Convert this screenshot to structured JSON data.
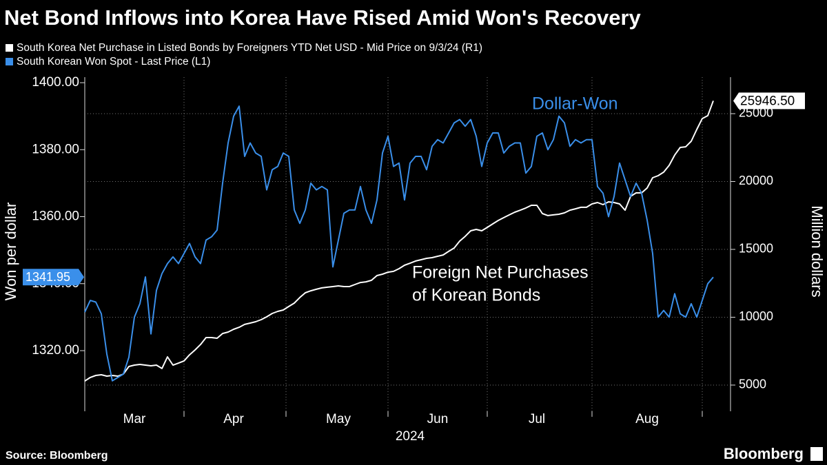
{
  "chart_data": {
    "type": "line",
    "title": "Net Bond Inflows into Korea Have Rised Amid Won's Recovery",
    "categories": [
      null,
      null,
      null,
      null,
      null,
      null,
      null,
      null,
      null,
      "Mar",
      null,
      null,
      null,
      null,
      null,
      null,
      null,
      null,
      null,
      null,
      null,
      null,
      null,
      null,
      null,
      null,
      null,
      "Apr",
      null,
      null,
      null,
      null,
      null,
      null,
      null,
      null,
      null,
      null,
      null,
      null,
      null,
      null,
      null,
      null,
      null,
      null,
      "May",
      null,
      null,
      null,
      null,
      null,
      null,
      null,
      null,
      null,
      null,
      null,
      null,
      null,
      null,
      null,
      null,
      null,
      "Jun",
      null,
      null,
      null,
      null,
      null,
      null,
      null,
      null,
      null,
      null,
      null,
      null,
      null,
      null,
      null,
      null,
      null,
      "Jul",
      null,
      null,
      null,
      null,
      null,
      null,
      null,
      null,
      null,
      null,
      null,
      null,
      null,
      null,
      null,
      null,
      null,
      null,
      null,
      "Aug",
      null,
      null,
      null,
      null,
      null,
      null,
      null,
      null,
      null,
      null,
      null,
      null
    ],
    "x_label": "2024",
    "series": [
      {
        "name": "South Korea Net Purchase in Listed Bonds by Foreigners YTD Net USD - Mid Price on 9/3/24 (R1)",
        "color": "#ffffff",
        "axis": "y2",
        "values": [
          5300,
          5560,
          5710,
          5760,
          5660,
          5710,
          5660,
          5810,
          6370,
          6470,
          6520,
          6470,
          6420,
          6470,
          6220,
          7080,
          6470,
          6620,
          6780,
          7230,
          7590,
          7990,
          8500,
          8500,
          8450,
          8800,
          8910,
          9110,
          9260,
          9470,
          9570,
          9670,
          9820,
          10030,
          10280,
          10430,
          10530,
          10790,
          11040,
          11450,
          11800,
          11950,
          12060,
          12160,
          12210,
          12260,
          12310,
          12260,
          12260,
          12410,
          12560,
          12610,
          12720,
          13070,
          13170,
          13320,
          13380,
          13580,
          13830,
          13980,
          14140,
          14240,
          14340,
          14390,
          14490,
          14590,
          14850,
          15100,
          15610,
          15960,
          16370,
          16470,
          16370,
          16620,
          16880,
          17130,
          17340,
          17540,
          17740,
          17890,
          18050,
          18250,
          18250,
          17640,
          17490,
          17540,
          17590,
          17690,
          17890,
          17990,
          18100,
          18100,
          18350,
          18450,
          18300,
          18500,
          18450,
          18350,
          17890,
          18910,
          19160,
          19160,
          19520,
          20280,
          20430,
          20690,
          21190,
          21950,
          22510,
          22560,
          22970,
          23830,
          24640,
          24850,
          25946.5
        ],
        "value_labels": [
          null,
          null,
          null,
          null,
          null,
          null,
          null,
          null,
          null,
          null,
          null,
          null,
          null,
          null,
          null,
          null,
          null,
          null,
          null,
          null,
          null,
          null,
          null,
          null,
          null,
          null,
          null,
          null,
          null,
          null,
          null,
          null,
          null,
          null,
          null,
          null,
          null,
          null,
          null,
          null,
          null,
          null,
          null,
          null,
          null,
          null,
          null,
          null,
          null,
          null,
          null,
          null,
          null,
          null,
          null,
          null,
          null,
          null,
          null,
          null,
          null,
          null,
          null,
          null,
          null,
          null,
          null,
          null,
          null,
          null,
          null,
          null,
          null,
          null,
          null,
          null,
          null,
          null,
          null,
          null,
          null,
          null,
          null,
          null,
          null,
          null,
          null,
          null,
          null,
          null,
          null,
          null,
          null,
          null,
          null,
          null,
          null,
          null,
          null,
          null,
          null,
          null,
          null,
          null,
          null,
          null,
          null,
          null,
          null,
          null,
          null,
          null,
          null,
          null,
          "25946.50"
        ]
      },
      {
        "name": "South Korean Won Spot - Last Price (L1)",
        "color": "#3a8fea",
        "axis": "y",
        "values": [
          1331.5,
          1335,
          1334.5,
          1331,
          1319,
          1311,
          1312,
          1313,
          1318,
          1330,
          1334,
          1342,
          1325,
          1338,
          1343,
          1346,
          1348,
          1346,
          1349,
          1352,
          1348,
          1346,
          1353,
          1354,
          1356,
          1370,
          1382,
          1390,
          1393,
          1378,
          1382,
          1379,
          1378,
          1368,
          1374,
          1375,
          1379,
          1378,
          1362,
          1358,
          1362,
          1370,
          1368,
          1369,
          1368,
          1345,
          1353,
          1361,
          1362,
          1362,
          1369,
          1362,
          1358,
          1365,
          1379,
          1384,
          1375,
          1376,
          1365,
          1376,
          1378,
          1378,
          1374,
          1381,
          1383,
          1382,
          1385,
          1388,
          1389,
          1387,
          1389,
          1384,
          1375,
          1382,
          1385,
          1385,
          1379,
          1381,
          1382,
          1382,
          1373,
          1375,
          1384,
          1385,
          1380,
          1383,
          1390,
          1388,
          1381,
          1383,
          1382,
          1383,
          1383,
          1369,
          1367,
          1360,
          1366,
          1376,
          1371,
          1366,
          1370,
          1367,
          1359,
          1349,
          1330,
          1332,
          1330,
          1337,
          1331,
          1330,
          1334,
          1330,
          1335,
          1340,
          1341.95
        ],
        "value_labels": [
          null,
          null,
          null,
          null,
          null,
          null,
          null,
          null,
          null,
          null,
          null,
          null,
          null,
          null,
          null,
          null,
          null,
          null,
          null,
          null,
          null,
          null,
          null,
          null,
          null,
          null,
          null,
          null,
          null,
          null,
          null,
          null,
          null,
          null,
          null,
          null,
          null,
          null,
          null,
          null,
          null,
          null,
          null,
          null,
          null,
          null,
          null,
          null,
          null,
          null,
          null,
          null,
          null,
          null,
          null,
          null,
          null,
          null,
          null,
          null,
          null,
          null,
          null,
          null,
          null,
          null,
          null,
          null,
          null,
          null,
          null,
          null,
          null,
          null,
          null,
          null,
          null,
          null,
          null,
          null,
          null,
          null,
          null,
          null,
          null,
          null,
          null,
          null,
          null,
          null,
          null,
          null,
          null,
          null,
          null,
          null,
          null,
          null,
          null,
          null,
          null,
          null,
          null,
          null,
          null,
          null,
          null,
          null,
          null,
          null,
          null,
          null,
          null,
          null,
          "1341.95"
        ]
      }
    ],
    "y_label": "Won per dollar",
    "y2_label": "Million dollars",
    "ylim": [
      1301.9,
      1401.65
    ],
    "yticks": [
      {
        "value": 1320,
        "label": "1320.00"
      },
      {
        "value": 1340,
        "label": "1340.00"
      },
      {
        "value": 1360,
        "label": "1360.00"
      },
      {
        "value": 1380,
        "label": "1380.00"
      },
      {
        "value": 1400,
        "label": "1400.00"
      }
    ],
    "y2lim": [
      3070,
      27690
    ],
    "y2ticks": [
      5000,
      10000,
      15000,
      20000,
      25000
    ],
    "grid": true,
    "annotations": [
      "Dollar-Won",
      "Foreign Net Purchases",
      "of Korean Bonds"
    ],
    "source": "Source: Bloomberg",
    "brand": "Bloomberg"
  }
}
